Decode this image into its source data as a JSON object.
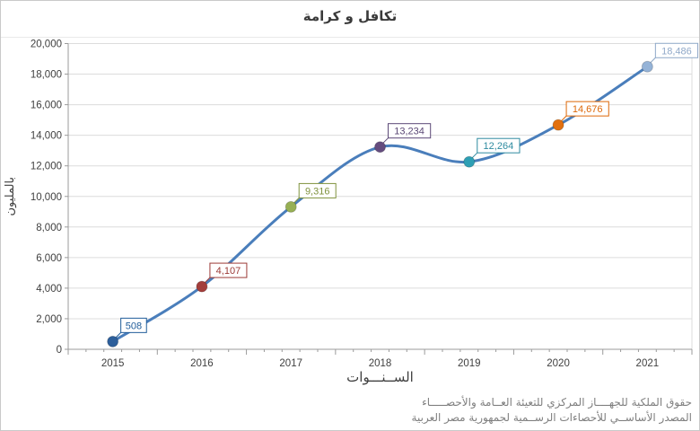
{
  "title": "تكافل و كرامة",
  "footer": {
    "line1": "حقوق الملكية للجهــــاز المركزي للتعيئة العــامة والأحصـــــاء",
    "line2": "المصدر الأساســي للأحصاءات الرســمية لجمهورية مصر العربية"
  },
  "chart_data": {
    "type": "line",
    "title": "تكافل و كرامة",
    "xlabel": "الســنـــوات",
    "ylabel": "بالمليون",
    "categories": [
      "2015",
      "2016",
      "2017",
      "2018",
      "2019",
      "2020",
      "2021"
    ],
    "values": [
      508,
      4107,
      9316,
      13234,
      12264,
      14676,
      18486
    ],
    "data_labels": [
      "508",
      "4,107",
      "9,316",
      "13,234",
      "12,264",
      "14,676",
      "18,486"
    ],
    "point_colors": [
      "#2D5F9B",
      "#A33E3B",
      "#97B054",
      "#644C7E",
      "#2E9FB4",
      "#E2700F",
      "#95B3D7"
    ],
    "label_colors": [
      "#1F5C99",
      "#9C3A37",
      "#7F923D",
      "#5B4876",
      "#2E8BA0",
      "#DD6809",
      "#8FA8C8"
    ],
    "line_color": "#4A7EBB",
    "grid_color": "#DCDCDC",
    "axis_color": "#9B9B9B",
    "tick_label_color": "#3F3F3F",
    "ylim": [
      0,
      20000
    ],
    "ytick_step": 2000,
    "grid": "horizontal",
    "legend": "none",
    "smooth": true
  }
}
